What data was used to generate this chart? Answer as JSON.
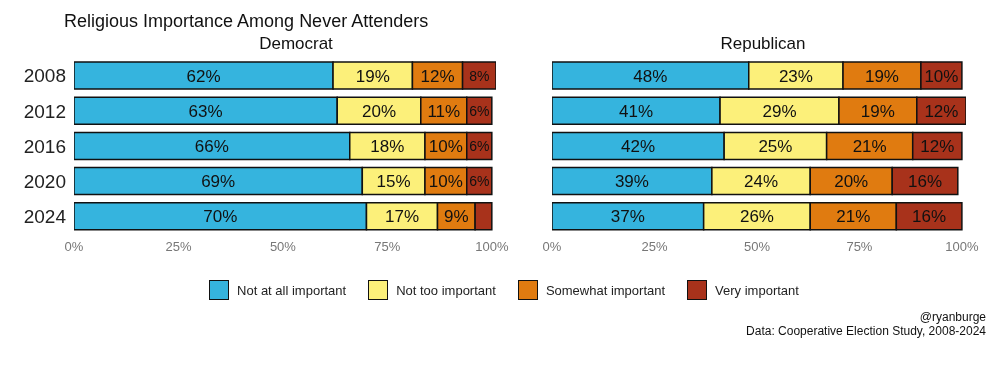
{
  "chart_data": [
    {
      "type": "bar",
      "title": "Religious Importance Among Never Attenders",
      "subtitle": "Democrat",
      "orientation": "horizontal",
      "stacked": true,
      "legend": "bottom",
      "categories": [
        "2008",
        "2012",
        "2016",
        "2020",
        "2024"
      ],
      "series": [
        {
          "name": "Not at all important",
          "color": "#35b4de",
          "values": [
            62,
            63,
            66,
            69,
            70
          ],
          "value_labels": [
            "62%",
            "63%",
            "66%",
            "69%",
            "70%"
          ]
        },
        {
          "name": "Not too important",
          "color": "#fcf07a",
          "values": [
            19,
            20,
            18,
            15,
            17
          ],
          "value_labels": [
            "19%",
            "20%",
            "18%",
            "15%",
            "17%"
          ]
        },
        {
          "name": "Somewhat important",
          "color": "#e07b10",
          "values": [
            12,
            11,
            10,
            10,
            9
          ],
          "value_labels": [
            "12%",
            "11%",
            "10%",
            "10%",
            "9%"
          ]
        },
        {
          "name": "Very important",
          "color": "#a8321b",
          "values": [
            8,
            6,
            6,
            6,
            4
          ],
          "value_labels": [
            "8%",
            "6%",
            "6%",
            "6%",
            null
          ]
        }
      ],
      "xlim": [
        0,
        101
      ],
      "xticks": [
        {
          "value": 0,
          "label": "0%"
        },
        {
          "value": 25,
          "label": "25%"
        },
        {
          "value": 50,
          "label": "50%"
        },
        {
          "value": 75,
          "label": "75%"
        },
        {
          "value": 100,
          "label": "100%"
        }
      ]
    },
    {
      "type": "bar",
      "subtitle": "Republican",
      "orientation": "horizontal",
      "stacked": true,
      "tick_labels": "x",
      "categories": [
        "2008",
        "2012",
        "2016",
        "2020",
        "2024"
      ],
      "series": [
        {
          "color": "#35b4de",
          "values": [
            48,
            41,
            42,
            39,
            37
          ],
          "value_labels": [
            "48%",
            "41%",
            "42%",
            "39%",
            "37%"
          ]
        },
        {
          "color": "#fcf07a",
          "values": [
            23,
            29,
            25,
            24,
            26
          ],
          "value_labels": [
            "23%",
            "29%",
            "25%",
            "24%",
            "26%"
          ]
        },
        {
          "color": "#e07b10",
          "values": [
            19,
            19,
            21,
            20,
            21
          ],
          "value_labels": [
            "19%",
            "19%",
            "21%",
            "20%",
            "21%"
          ]
        },
        {
          "color": "#a8321b",
          "values": [
            10,
            12,
            12,
            16,
            16
          ],
          "value_labels": [
            "10%",
            "12%",
            "12%",
            "16%",
            "16%"
          ]
        }
      ],
      "xlim": [
        0,
        101
      ],
      "xticks": [
        {
          "value": 0,
          "label": "0%"
        },
        {
          "value": 25,
          "label": "25%"
        },
        {
          "value": 50,
          "label": "50%"
        },
        {
          "value": 75,
          "label": "75%"
        },
        {
          "value": 100,
          "label": "100%"
        }
      ],
      "annotations": [
        "@ryanburge",
        "Data: Cooperative Election Study, 2008-2024"
      ]
    }
  ]
}
